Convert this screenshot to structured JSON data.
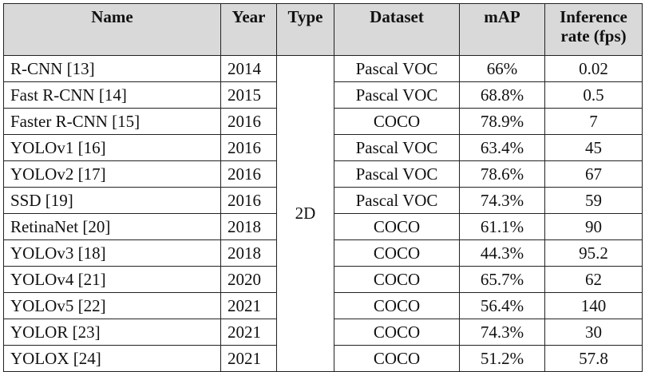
{
  "table": {
    "headers": {
      "name": "Name",
      "year": "Year",
      "type": "Type",
      "dataset": "Dataset",
      "map": "mAP",
      "fps_line1": "Inference",
      "fps_line2": "rate (fps)"
    },
    "type_value": "2D",
    "rows": [
      {
        "name": "R-CNN [13]",
        "year": "2014",
        "dataset": "Pascal VOC",
        "map": "66%",
        "fps": "0.02"
      },
      {
        "name": "Fast R-CNN [14]",
        "year": "2015",
        "dataset": "Pascal VOC",
        "map": "68.8%",
        "fps": "0.5"
      },
      {
        "name": "Faster R-CNN [15]",
        "year": "2016",
        "dataset": "COCO",
        "map": "78.9%",
        "fps": "7"
      },
      {
        "name": "YOLOv1 [16]",
        "year": "2016",
        "dataset": "Pascal VOC",
        "map": "63.4%",
        "fps": "45"
      },
      {
        "name": "YOLOv2 [17]",
        "year": "2016",
        "dataset": "Pascal VOC",
        "map": "78.6%",
        "fps": "67"
      },
      {
        "name": "SSD [19]",
        "year": "2016",
        "dataset": "Pascal VOC",
        "map": "74.3%",
        "fps": "59"
      },
      {
        "name": "RetinaNet [20]",
        "year": "2018",
        "dataset": "COCO",
        "map": "61.1%",
        "fps": "90"
      },
      {
        "name": "YOLOv3 [18]",
        "year": "2018",
        "dataset": "COCO",
        "map": "44.3%",
        "fps": "95.2"
      },
      {
        "name": "YOLOv4 [21]",
        "year": "2020",
        "dataset": "COCO",
        "map": "65.7%",
        "fps": "62"
      },
      {
        "name": "YOLOv5 [22]",
        "year": "2021",
        "dataset": "COCO",
        "map": "56.4%",
        "fps": "140"
      },
      {
        "name": "YOLOR [23]",
        "year": "2021",
        "dataset": "COCO",
        "map": "74.3%",
        "fps": "30"
      },
      {
        "name": "YOLOX [24]",
        "year": "2021",
        "dataset": "COCO",
        "map": "51.2%",
        "fps": "57.8"
      }
    ]
  }
}
